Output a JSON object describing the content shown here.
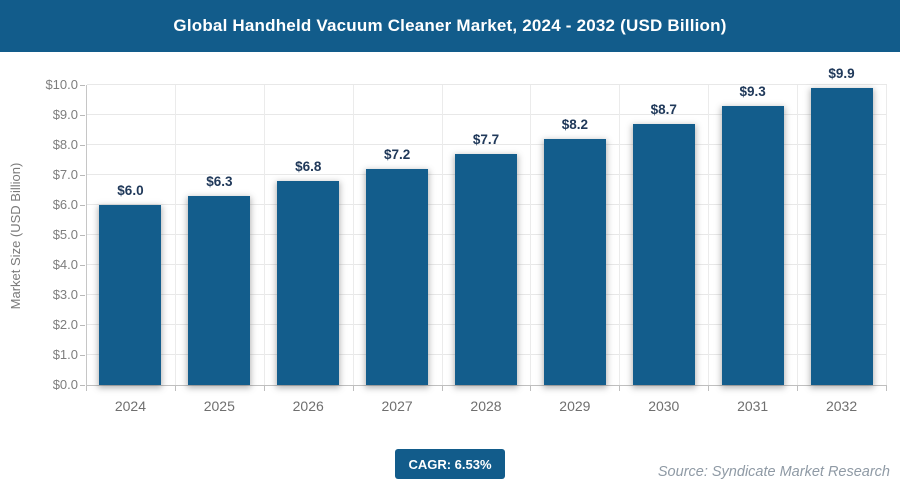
{
  "header": {
    "title": "Global Handheld Vacuum Cleaner Market, 2024 - 2032 (USD Billion)"
  },
  "chart_data": {
    "type": "bar",
    "title": "Global Handheld Vacuum Cleaner Market, 2024 - 2032 (USD Billion)",
    "categories": [
      "2024",
      "2025",
      "2026",
      "2027",
      "2028",
      "2029",
      "2030",
      "2031",
      "2032"
    ],
    "values": [
      6.0,
      6.3,
      6.8,
      7.2,
      7.7,
      8.2,
      8.7,
      9.3,
      9.9
    ],
    "bar_labels": [
      "$6.0",
      "$6.3",
      "$6.8",
      "$7.2",
      "$7.7",
      "$8.2",
      "$8.7",
      "$9.3",
      "$9.9"
    ],
    "xlabel": "",
    "ylabel": "Market Size (USD Billion)",
    "ylim": [
      0,
      10
    ],
    "ytick_labels": [
      "$0.0",
      "$1.0",
      "$2.0",
      "$3.0",
      "$4.0",
      "$5.0",
      "$6.0",
      "$7.0",
      "$8.0",
      "$9.0",
      "$10.0"
    ],
    "grid": "on",
    "legend": "none",
    "bar_color": "#135d8c",
    "value_label_color": "#20395a"
  },
  "footer": {
    "cagr_label": "CAGR: 6.53%",
    "source": "Source: Syndicate Market Research"
  },
  "colors": {
    "header_bg": "#125c8b",
    "badge_bg": "#125c8b",
    "grid": "#e8e8e8",
    "axis": "#bfbfbf",
    "tick_text": "#7d7d7d",
    "source_text": "#8f9aa5"
  }
}
